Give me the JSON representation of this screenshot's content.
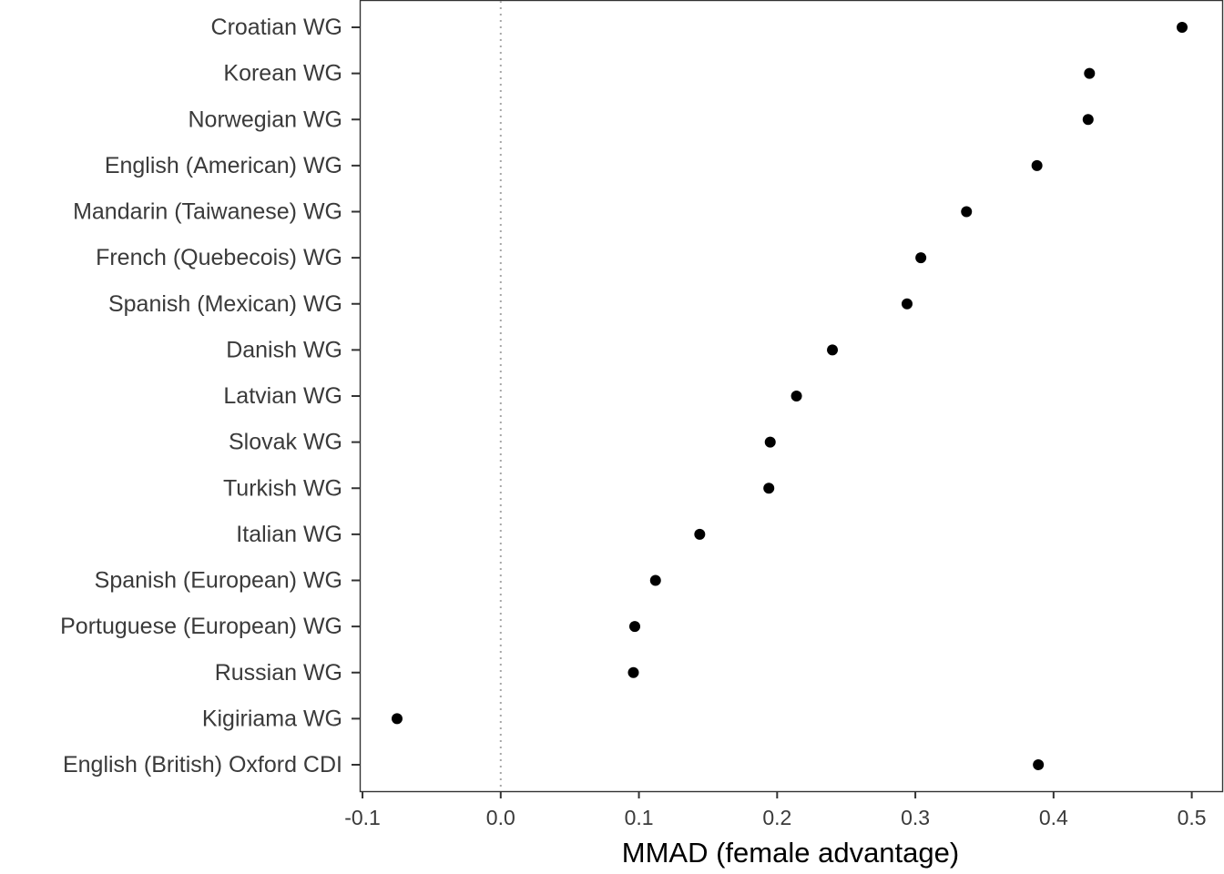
{
  "chart_data": {
    "type": "scatter",
    "title": "",
    "xlabel": "MMAD (female advantage)",
    "ylabel": "",
    "xlim": [
      -0.102,
      0.522
    ],
    "xticks": [
      -0.1,
      0.0,
      0.1,
      0.2,
      0.3,
      0.4,
      0.5
    ],
    "xtick_labels": [
      "-0.1",
      "0.0",
      "0.1",
      "0.2",
      "0.3",
      "0.4",
      "0.5"
    ],
    "reference_line": {
      "x": 0.0,
      "style": "dotted",
      "color": "#a6a6a6"
    },
    "grid": false,
    "legend": "none",
    "point_color": "#000000",
    "categories": [
      "Croatian WG",
      "Korean WG",
      "Norwegian WG",
      "English (American) WG",
      "Mandarin (Taiwanese) WG",
      "French (Quebecois) WG",
      "Spanish (Mexican) WG",
      "Danish WG",
      "Latvian WG",
      "Slovak WG",
      "Turkish WG",
      "Italian WG",
      "Spanish (European) WG",
      "Portuguese (European) WG",
      "Russian WG",
      "Kigiriama WG",
      "English (British) Oxford CDI"
    ],
    "values": [
      0.493,
      0.426,
      0.425,
      0.388,
      0.337,
      0.304,
      0.294,
      0.24,
      0.214,
      0.195,
      0.194,
      0.144,
      0.112,
      0.097,
      0.096,
      -0.075,
      0.389
    ]
  }
}
